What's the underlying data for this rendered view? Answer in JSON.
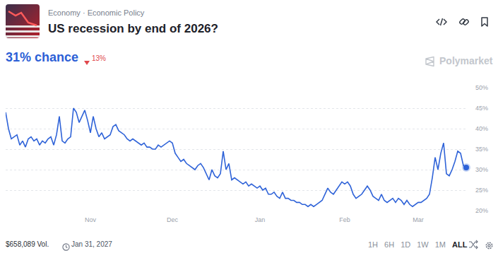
{
  "chart_data": {
    "type": "line",
    "title": "US recession by end of 2026?",
    "color": "#2f63d8",
    "grid": true,
    "ylim": [
      20,
      50
    ],
    "yticks": [
      {
        "value": 20,
        "label": "20%"
      },
      {
        "value": 25,
        "label": "25%"
      },
      {
        "value": 30,
        "label": "30%"
      },
      {
        "value": 35,
        "label": "35%"
      },
      {
        "value": 40,
        "label": "40%"
      },
      {
        "value": 45,
        "label": "45%"
      },
      {
        "value": 50,
        "label": "50%"
      }
    ],
    "categories": [
      null,
      null,
      null,
      null,
      null,
      null,
      null,
      null,
      null,
      null,
      null,
      null,
      null,
      null,
      null,
      null,
      null,
      null,
      null,
      null,
      null,
      null,
      null,
      null,
      null,
      null,
      null,
      null,
      null,
      null,
      "Nov",
      null,
      null,
      null,
      null,
      null,
      null,
      null,
      null,
      null,
      null,
      null,
      null,
      null,
      null,
      null,
      null,
      null,
      null,
      null,
      null,
      null,
      null,
      null,
      null,
      null,
      null,
      null,
      null,
      "Dec",
      null,
      null,
      null,
      null,
      null,
      null,
      null,
      null,
      null,
      null,
      null,
      null,
      null,
      null,
      null,
      null,
      null,
      null,
      null,
      null,
      null,
      null,
      null,
      null,
      null,
      null,
      null,
      null,
      null,
      null,
      "Jan",
      null,
      null,
      null,
      null,
      null,
      null,
      null,
      null,
      null,
      null,
      null,
      null,
      null,
      null,
      null,
      null,
      null,
      null,
      null,
      null,
      null,
      null,
      null,
      null,
      null,
      null,
      null,
      null,
      null,
      "Feb",
      null,
      null,
      null,
      null,
      null,
      null,
      null,
      null,
      null,
      null,
      null,
      null,
      null,
      null,
      null,
      null,
      null,
      null,
      null,
      null,
      null,
      null,
      null,
      null,
      null,
      "Mar",
      null,
      null,
      null,
      null,
      null,
      null,
      null,
      null,
      null,
      null,
      null,
      null,
      null,
      null,
      null,
      null,
      null
    ],
    "values": [
      44,
      40,
      37.5,
      38,
      38.5,
      36,
      37,
      35.5,
      37.5,
      38,
      37,
      37.5,
      36,
      37,
      36.5,
      37.5,
      38,
      36,
      38.5,
      43,
      37,
      36.5,
      37.5,
      38,
      45,
      44,
      41.5,
      43,
      44.5,
      42,
      39,
      43,
      40,
      38,
      39,
      37.5,
      38,
      38.5,
      40.5,
      41,
      39.5,
      39,
      38.5,
      37.5,
      37,
      37.5,
      37,
      36.5,
      36,
      36.5,
      35.5,
      35.5,
      35,
      35,
      36,
      35.5,
      36,
      36.5,
      37,
      36.5,
      34,
      33,
      32,
      32.5,
      31.5,
      31,
      30.5,
      30,
      31,
      31.5,
      30.5,
      29,
      27.5,
      30,
      28.5,
      28,
      29,
      34.5,
      30,
      31.5,
      27.5,
      28,
      27.5,
      27,
      26.5,
      27,
      26,
      26.5,
      26,
      25.5,
      26,
      25,
      25.5,
      24,
      24,
      24.5,
      23.5,
      23,
      24.5,
      23,
      23,
      22.5,
      22.5,
      22,
      22,
      21.5,
      21.5,
      21,
      21.5,
      21,
      21.5,
      22,
      22.5,
      24,
      25.5,
      24.5,
      24,
      25,
      26,
      27,
      26.5,
      27,
      26,
      24,
      23,
      23.5,
      24,
      25,
      26,
      25,
      23.5,
      23,
      22.5,
      24,
      22.5,
      22,
      22.5,
      23,
      22,
      23,
      22.5,
      21.5,
      22.5,
      21.5,
      21,
      21.5,
      22,
      22,
      22.5,
      23,
      24,
      28,
      33,
      30,
      34,
      36.5,
      29,
      28.5,
      30,
      32,
      34.5,
      34,
      31,
      30.5
    ]
  },
  "header": {
    "breadcrumb": "Economy · Economic Policy",
    "headline": "31% chance",
    "change": "13%",
    "brand": "Polymarket"
  },
  "footer": {
    "volume": "$658,089 Vol.",
    "end_date": "Jan 31, 2027",
    "ranges": [
      "1H",
      "6H",
      "1D",
      "1W",
      "1M",
      "ALL"
    ],
    "selected_range": "ALL"
  }
}
